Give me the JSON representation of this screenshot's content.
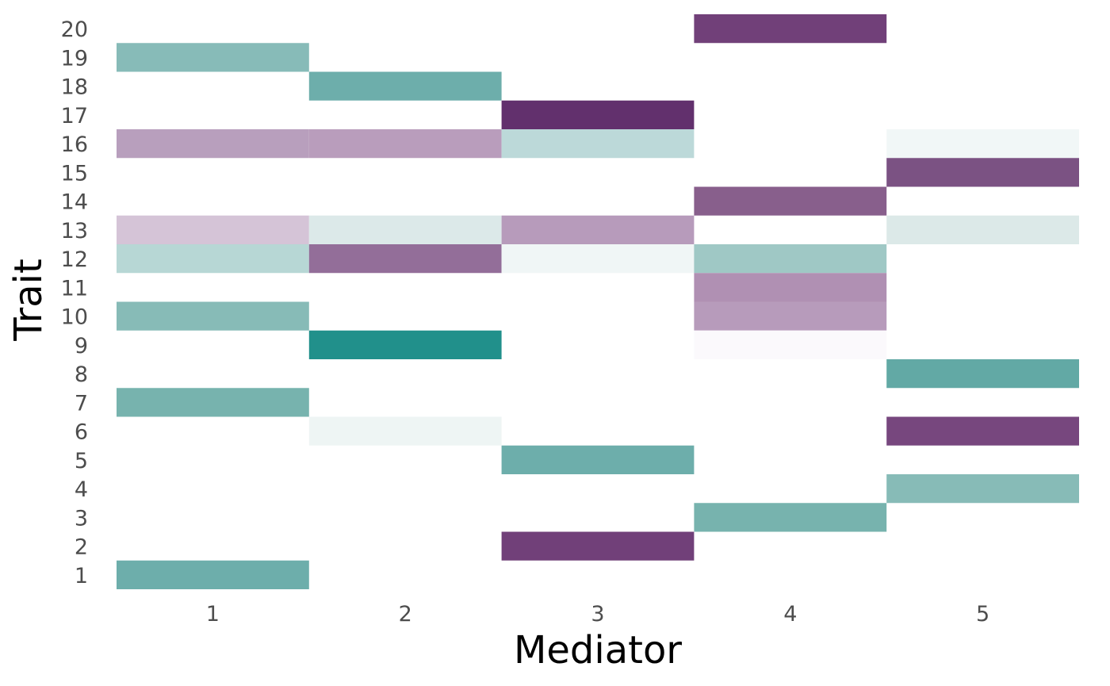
{
  "chart_data": {
    "type": "heatmap",
    "title": "",
    "xlabel": "Mediator",
    "ylabel": "Trait",
    "x_categories": [
      "1",
      "2",
      "3",
      "4",
      "5"
    ],
    "y_categories": [
      "1",
      "2",
      "3",
      "4",
      "5",
      "6",
      "7",
      "8",
      "9",
      "10",
      "11",
      "12",
      "13",
      "14",
      "15",
      "16",
      "17",
      "18",
      "19",
      "20"
    ],
    "grid": false,
    "legend": "none",
    "cells": [
      {
        "x": "4",
        "y": "20",
        "color": "#714079"
      },
      {
        "x": "1",
        "y": "19",
        "color": "#87bbb8"
      },
      {
        "x": "2",
        "y": "18",
        "color": "#6daeab"
      },
      {
        "x": "3",
        "y": "17",
        "color": "#62306d"
      },
      {
        "x": "1",
        "y": "16",
        "color": "#b89fbd"
      },
      {
        "x": "2",
        "y": "16",
        "color": "#b99dbc"
      },
      {
        "x": "3",
        "y": "16",
        "color": "#bcd9d9"
      },
      {
        "x": "5",
        "y": "16",
        "color": "#f1f7f7"
      },
      {
        "x": "5",
        "y": "15",
        "color": "#7b5283"
      },
      {
        "x": "4",
        "y": "14",
        "color": "#885f8c"
      },
      {
        "x": "1",
        "y": "13",
        "color": "#d5c4d7"
      },
      {
        "x": "2",
        "y": "13",
        "color": "#dce9e9"
      },
      {
        "x": "3",
        "y": "13",
        "color": "#b79bbb"
      },
      {
        "x": "5",
        "y": "13",
        "color": "#dce9e8"
      },
      {
        "x": "1",
        "y": "12",
        "color": "#b7d7d5"
      },
      {
        "x": "2",
        "y": "12",
        "color": "#936e99"
      },
      {
        "x": "3",
        "y": "12",
        "color": "#f0f6f6"
      },
      {
        "x": "4",
        "y": "12",
        "color": "#9fc8c5"
      },
      {
        "x": "4",
        "y": "11",
        "color": "#b090b3"
      },
      {
        "x": "1",
        "y": "10",
        "color": "#87bbb7"
      },
      {
        "x": "4",
        "y": "10",
        "color": "#b79bbb"
      },
      {
        "x": "2",
        "y": "9",
        "color": "#21908b"
      },
      {
        "x": "4",
        "y": "9",
        "color": "#fbf9fc"
      },
      {
        "x": "5",
        "y": "8",
        "color": "#62a9a5"
      },
      {
        "x": "1",
        "y": "7",
        "color": "#77b3ae"
      },
      {
        "x": "2",
        "y": "6",
        "color": "#eef5f4"
      },
      {
        "x": "5",
        "y": "6",
        "color": "#77477e"
      },
      {
        "x": "3",
        "y": "5",
        "color": "#6daeab"
      },
      {
        "x": "5",
        "y": "4",
        "color": "#87bbb7"
      },
      {
        "x": "4",
        "y": "3",
        "color": "#77b3ae"
      },
      {
        "x": "3",
        "y": "2",
        "color": "#714079"
      },
      {
        "x": "1",
        "y": "1",
        "color": "#6daeab"
      }
    ]
  }
}
